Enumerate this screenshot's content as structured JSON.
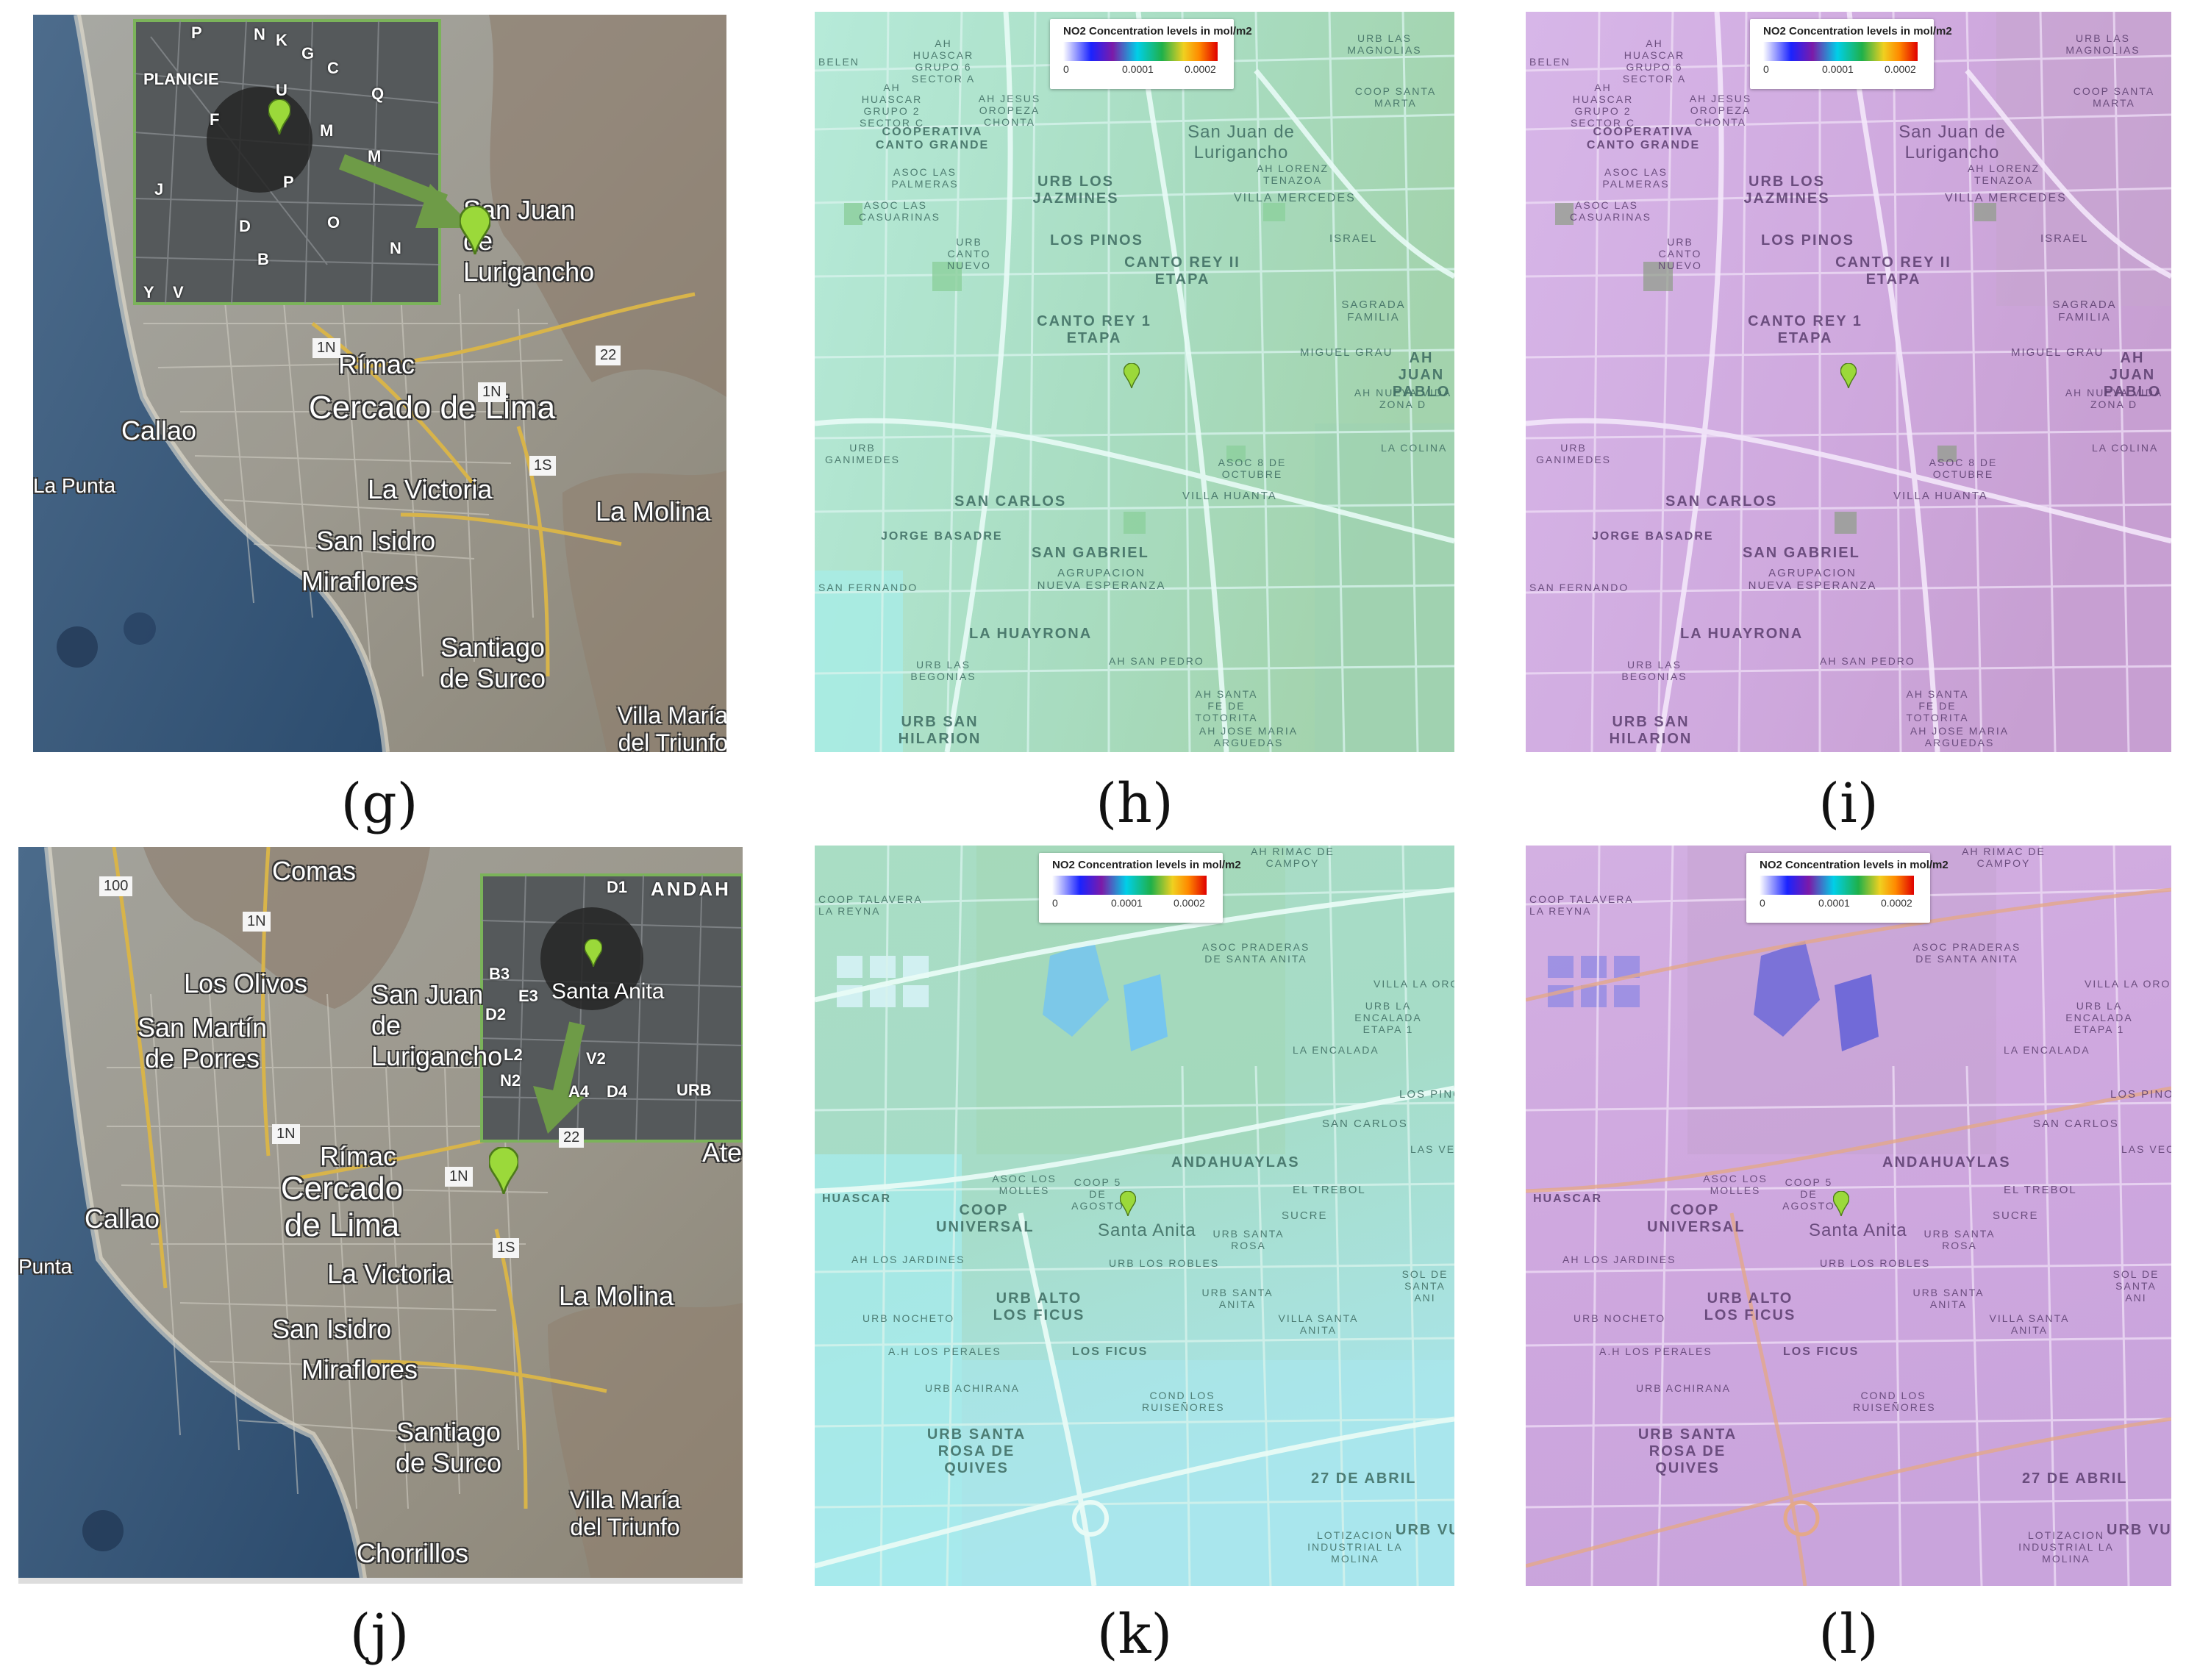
{
  "captions": {
    "g": "(g)",
    "h": "(h)",
    "i": "(i)",
    "j": "(j)",
    "k": "(k)",
    "l": "(l)"
  },
  "legend": {
    "title": "NO2 Concentration levels in mol/m2",
    "tick_min": "0",
    "tick_mid": "0.0001",
    "tick_max": "0.0002"
  },
  "satellite_top": {
    "labels": [
      "Rímac",
      "Cercado de Lima",
      "Callao",
      "La Punta",
      "La Victoria",
      "La Molina",
      "San Isidro",
      "Miraflores",
      "Santiago de Surco",
      "Villa María del Triunfo",
      "San Juan de Lurigancho"
    ],
    "routes": [
      "1N",
      "1N",
      "1S",
      "22"
    ],
    "inset_labels": [
      "PLANICIE",
      "P",
      "N",
      "K",
      "G",
      "C",
      "Q",
      "U",
      "M",
      "F",
      "J",
      "P",
      "M",
      "O",
      "D",
      "B",
      "N",
      "V",
      "Y"
    ]
  },
  "satellite_bottom": {
    "labels": [
      "Comas",
      "Los Olivos",
      "San Martín de Porres",
      "San Juan de Lurigancho",
      "Rímac",
      "Cercado de Lima",
      "Callao",
      "Punta",
      "La Victoria",
      "La Molina",
      "San Isidro",
      "Miraflores",
      "Santiago de Surco",
      "Villa María del Triunfo",
      "Chorrillos",
      "Ate"
    ],
    "routes": [
      "100",
      "1N",
      "1N",
      "1N",
      "22",
      "1S"
    ],
    "inset_labels": [
      "ANDAH",
      "Santa Anita",
      "D1",
      "B3",
      "E3",
      "D2",
      "L2",
      "N2",
      "V2",
      "A4",
      "D4",
      "URB"
    ]
  },
  "street_top": {
    "labels": [
      "San Juan de Lurigancho",
      "URB LOS JAZMINES",
      "LOS PINOS",
      "CANTO REY II ETAPA",
      "CANTO REY 1 ETAPA",
      "COOPERATIVA CANTO GRANDE",
      "SAN CARLOS",
      "JORGE BASADRE",
      "SAN GABRIEL",
      "AGRUPACION NUEVA ESPERANZA",
      "LA HUAYRONA",
      "URB SAN HILARION",
      "VILLA MERCEDES",
      "SAGRADA FAMILIA",
      "MIGUEL GRAU",
      "AH JUAN PABLO",
      "AH NUEVA VIDA ZONA D",
      "LA COLINA",
      "VILLA HUANTA",
      "ASOC 8 DE OCTUBRE",
      "AH JOSE MARIA ARGUEDAS",
      "AH LORENZ TENAZOA",
      "URB LAS MAGNOLIAS",
      "COOP SANTA MARTA",
      "AH HUASCAR GRUPO 6 SECTOR A",
      "AH HUASCAR GRUPO 2 SECTOR C",
      "AH JESUS OROPEZA CHONTA",
      "ASOC LAS PALMERAS",
      "ASOC LAS CASUARINAS",
      "URB CANTO NUEVO",
      "URB GANIMEDES",
      "SAN FERNANDO",
      "URB LAS BEGONIAS",
      "AH SAN PEDRO",
      "AH SANTA FE DE TOTORITA",
      "ISRAEL",
      "BELEN"
    ]
  },
  "street_bottom": {
    "labels": [
      "Santa Anita",
      "ANDAHUAYLAS",
      "COOP UNIVERSAL",
      "URB ALTO LOS FICUS",
      "LOS FICUS",
      "URB SANTA ROSA DE QUIVES",
      "27 DE ABRIL",
      "LOTIZACION INDUSTRIAL LA MOLINA",
      "URB VU",
      "COND LOS RUISEÑORES",
      "URB ACHIRANA",
      "A.H LOS PERALES",
      "URB NOCHETO",
      "AH LOS JARDINES",
      "HUASCAR",
      "EL TREBOL",
      "SUCRE",
      "URB SANTA ROSA",
      "URB SANTA ANITA",
      "VILLA SANTA ANITA",
      "ASOC PRADERAS DE SANTA ANITA",
      "LA ENCALADA",
      "SAN CARLOS",
      "LOS PINO",
      "COOP TALAVERA LA REYNA",
      "AH RIMAC DE CAMPOY",
      "ASOC LOS MOLLES",
      "COOP 5 DE AGOSTO",
      "URB LOS ROBLES",
      "VILLA LA ORO",
      "URB LA ENCALADA ETAPA 1",
      "LAS VEC",
      "SOL DE SANTA ANI"
    ]
  }
}
